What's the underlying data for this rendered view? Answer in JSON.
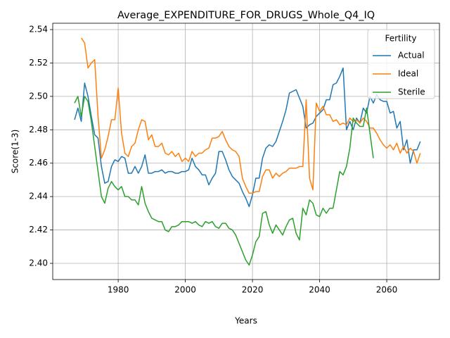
{
  "chart_data": {
    "type": "line",
    "title": "Average_EXPENDITURE_FOR_DRUGS_Whole_Q4_IQ",
    "x_label": "Years",
    "y_label": "Score(1-3)",
    "legend_title": "Fertility",
    "legend_loc": "upper right",
    "grid": true,
    "xlim": [
      1960.5,
      2075.7
    ],
    "xticks": [
      1980,
      2000,
      2020,
      2040,
      2060
    ],
    "ylim": [
      2.3903,
      2.5438
    ],
    "yticks": [
      {
        "value": 2.4,
        "label": "2.40"
      },
      2.42,
      2.44,
      2.46,
      2.48,
      {
        "value": 2.5,
        "label": "2.50"
      },
      2.52,
      2.54
    ],
    "x": [
      1967,
      1968,
      1969,
      1970,
      1971,
      1972,
      1973,
      1974,
      1975,
      1976,
      1977,
      1978,
      1979,
      1980,
      1981,
      1982,
      1983,
      1984,
      1985,
      1986,
      1987,
      1988,
      1989,
      1990,
      1991,
      1992,
      1993,
      1994,
      1995,
      1996,
      1997,
      1998,
      1999,
      2000,
      2001,
      2002,
      2003,
      2004,
      2005,
      2006,
      2007,
      2008,
      2009,
      2010,
      2011,
      2012,
      2013,
      2014,
      2015,
      2016,
      2017,
      2018,
      2019,
      2020,
      2021,
      2022,
      2023,
      2024,
      2025,
      2026,
      2027,
      2028,
      2029,
      2030,
      2031,
      2032,
      2033,
      2034,
      2035,
      2036,
      2037,
      2038,
      2039,
      2040,
      2041,
      2042,
      2043,
      2044,
      2045,
      2046,
      2047,
      2048,
      2049,
      2050,
      2051,
      2052,
      2053,
      2054,
      2055,
      2056,
      2057,
      2058,
      2059,
      2060,
      2061,
      2062,
      2063,
      2064,
      2065,
      2066,
      2067,
      2068,
      2069,
      2070
    ],
    "series": [
      {
        "name": "Actual",
        "color": "#1f77b4",
        "values": [
          2.486,
          2.493,
          2.485,
          2.508,
          2.5,
          2.488,
          2.477,
          2.475,
          2.458,
          2.448,
          2.449,
          2.458,
          2.462,
          2.461,
          2.464,
          2.463,
          2.454,
          2.454,
          2.458,
          2.454,
          2.458,
          2.465,
          2.454,
          2.454,
          2.455,
          2.455,
          2.456,
          2.454,
          2.455,
          2.455,
          2.454,
          2.454,
          2.455,
          2.455,
          2.456,
          2.463,
          2.458,
          2.456,
          2.453,
          2.453,
          2.447,
          2.451,
          2.454,
          2.467,
          2.467,
          2.462,
          2.456,
          2.452,
          2.45,
          2.448,
          2.443,
          2.439,
          2.434,
          2.441,
          2.451,
          2.451,
          2.463,
          2.469,
          2.471,
          2.47,
          2.473,
          2.479,
          2.485,
          2.492,
          2.502,
          2.503,
          2.504,
          2.499,
          2.494,
          2.481,
          2.483,
          2.484,
          2.488,
          2.49,
          2.492,
          2.498,
          2.498,
          2.507,
          2.508,
          2.512,
          2.517,
          2.48,
          2.485,
          2.48,
          2.487,
          2.484,
          2.493,
          2.49,
          2.5,
          2.496,
          2.501,
          2.498,
          2.497,
          2.497,
          2.49,
          2.491,
          2.481,
          2.485,
          2.468,
          2.474,
          2.46,
          2.468,
          2.468,
          2.473
        ]
      },
      {
        "name": "Ideal",
        "color": "#ff7f0e",
        "values": [
          null,
          null,
          2.535,
          2.532,
          2.517,
          2.52,
          2.522,
          2.488,
          2.463,
          2.468,
          2.476,
          2.486,
          2.486,
          2.505,
          2.478,
          2.466,
          2.464,
          2.47,
          2.472,
          2.48,
          2.486,
          2.485,
          2.474,
          2.477,
          2.47,
          2.47,
          2.472,
          2.466,
          2.465,
          2.467,
          2.464,
          2.466,
          2.461,
          2.463,
          2.461,
          2.467,
          2.464,
          2.466,
          2.466,
          2.468,
          2.469,
          2.475,
          2.475,
          2.476,
          2.479,
          2.474,
          2.47,
          2.468,
          2.467,
          2.464,
          2.451,
          2.446,
          2.442,
          2.442,
          2.443,
          2.443,
          2.452,
          2.456,
          2.456,
          2.451,
          2.454,
          2.452,
          2.454,
          2.455,
          2.457,
          2.457,
          2.457,
          2.458,
          2.458,
          2.498,
          2.451,
          2.444,
          2.496,
          2.491,
          2.494,
          2.489,
          2.489,
          2.485,
          2.486,
          2.483,
          2.484,
          2.483,
          2.487,
          2.485,
          2.486,
          2.484,
          2.487,
          2.485,
          2.481,
          2.481,
          2.478,
          2.474,
          2.471,
          2.469,
          2.471,
          2.468,
          2.472,
          2.466,
          2.47,
          2.466,
          2.469,
          2.467,
          2.46,
          2.466
        ]
      },
      {
        "name": "Sterile",
        "color": "#2ca02c",
        "values": [
          2.496,
          2.5,
          2.488,
          2.5,
          2.497,
          2.485,
          2.47,
          2.455,
          2.44,
          2.436,
          2.445,
          2.449,
          2.446,
          2.444,
          2.446,
          2.44,
          2.44,
          2.438,
          2.438,
          2.435,
          2.446,
          2.436,
          2.431,
          2.427,
          2.426,
          2.425,
          2.425,
          2.42,
          2.419,
          2.422,
          2.422,
          2.423,
          2.425,
          2.425,
          2.425,
          2.424,
          2.425,
          2.423,
          2.422,
          2.425,
          2.424,
          2.425,
          2.422,
          2.421,
          2.424,
          2.424,
          2.421,
          2.42,
          2.417,
          2.412,
          2.407,
          2.402,
          2.399,
          2.405,
          2.413,
          2.416,
          2.43,
          2.431,
          2.423,
          2.418,
          2.423,
          2.42,
          2.417,
          2.422,
          2.426,
          2.427,
          2.418,
          2.414,
          2.433,
          2.429,
          2.438,
          2.436,
          2.429,
          2.428,
          2.433,
          2.43,
          2.433,
          2.433,
          2.444,
          2.455,
          2.453,
          2.458,
          2.469,
          2.487,
          2.484,
          2.482,
          2.482,
          2.493,
          2.478,
          2.463,
          null,
          null,
          null,
          null,
          null,
          null,
          null,
          null,
          null,
          null,
          null,
          null,
          null,
          null
        ]
      }
    ]
  }
}
